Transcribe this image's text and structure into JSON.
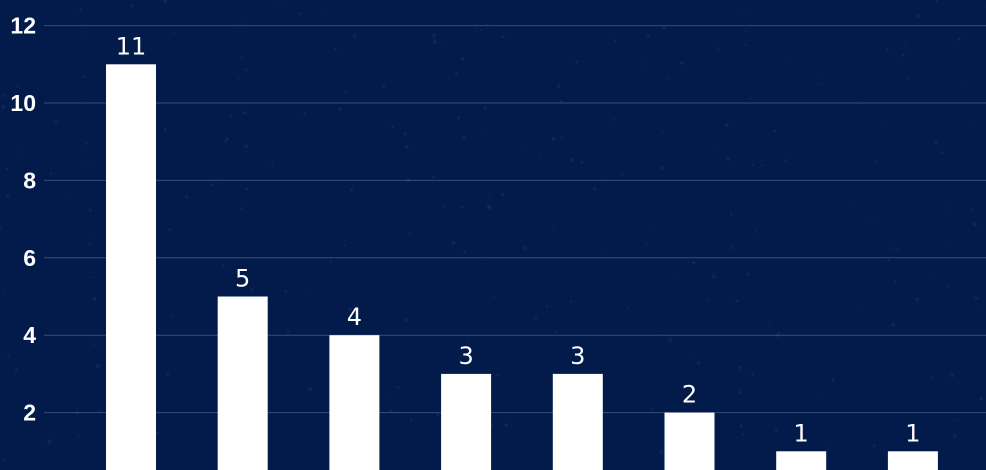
{
  "chart_data": {
    "type": "bar",
    "categories": [
      "",
      "",
      "",
      "",
      "",
      "",
      "",
      ""
    ],
    "values": [
      11,
      5,
      4,
      3,
      3,
      2,
      1,
      1
    ],
    "data_labels": [
      "11",
      "5",
      "4",
      "3",
      "3",
      "2",
      "1",
      "1"
    ],
    "y_ticks": [
      2,
      4,
      6,
      8,
      10,
      12
    ],
    "y_tick_labels": [
      "2",
      "4",
      "6",
      "8",
      "10",
      "12"
    ],
    "ylim": [
      0,
      12.66
    ],
    "grid": true,
    "colors": {
      "background": "#021b4b",
      "bar": "#ffffff",
      "text": "#ffffff",
      "grid": "rgba(255,255,255,0.22)"
    }
  }
}
